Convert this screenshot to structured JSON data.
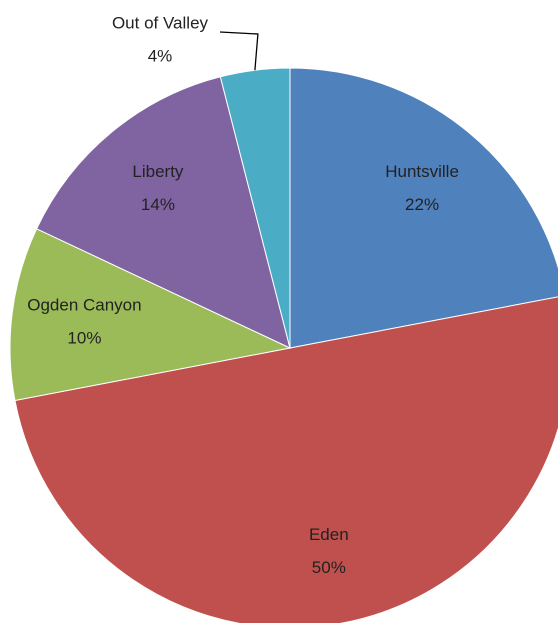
{
  "chart_data": {
    "type": "pie",
    "categories": [
      "Huntsville",
      "Eden",
      "Ogden Canyon",
      "Liberty",
      "Out of Valley"
    ],
    "values": [
      22,
      50,
      10,
      14,
      4
    ],
    "value_labels": [
      "22%",
      "50%",
      "10%",
      "14%",
      "4%"
    ],
    "colors": [
      "#4f81bd",
      "#c0504d",
      "#9bbb59",
      "#8064a2",
      "#4bacc6"
    ]
  }
}
